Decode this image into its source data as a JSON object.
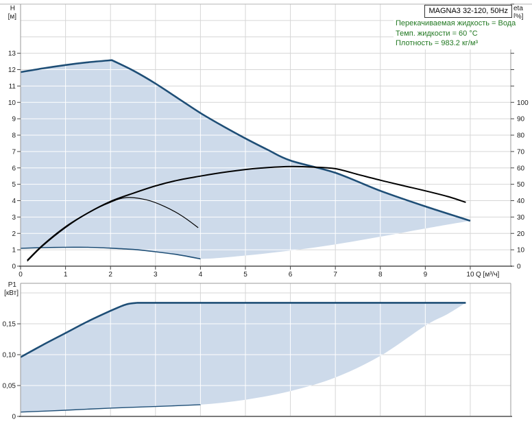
{
  "header": {
    "title": "MAGNA3 32-120, 50Hz"
  },
  "info_box": {
    "lines": [
      "Перекачиваемая жидкость = Вода",
      "Темп. жидкости = 60 °C",
      "Плотность = 983.2 кг/м³"
    ]
  },
  "colors": {
    "fill": "#cddaea",
    "curve_blue": "#1e4e76",
    "curve_black": "#000000",
    "grid": "#d6d6d6",
    "grid_in_area": "#ffffff",
    "plot_border": "#9a9a9a",
    "axis_line": "#7a7a7a",
    "tick_color": "#444444",
    "info_text": "#217821",
    "top_frame": "#b4b4b4"
  },
  "axes": {
    "h": {
      "name": "H",
      "unit": "[м]",
      "ticks": [
        0,
        1,
        2,
        3,
        4,
        5,
        6,
        7,
        8,
        9,
        10,
        11,
        12,
        13
      ],
      "grid": [
        1,
        2,
        3,
        4,
        5,
        6,
        7,
        8,
        9,
        10,
        11,
        12,
        13,
        14,
        15
      ],
      "max": 16
    },
    "eta": {
      "name": "eta",
      "unit": "[%]",
      "ticks": [
        0,
        10,
        20,
        30,
        40,
        50,
        60,
        70,
        80,
        90,
        100
      ],
      "tickmarks": [
        0,
        10,
        20,
        30,
        40,
        50,
        60,
        70,
        80,
        90,
        100,
        110,
        120,
        130,
        140,
        150,
        160
      ],
      "max": 160
    },
    "q": {
      "label": "Q [м³/ч]",
      "ticks": [
        0,
        1,
        2,
        3,
        4,
        5,
        6,
        7,
        8,
        9,
        10
      ],
      "max": 10.9
    },
    "p1": {
      "name": "P1",
      "unit": "[кВт]",
      "tick_labels": [
        "0",
        "0,05",
        "0,10",
        "0,15"
      ],
      "tick_values": [
        0,
        0.05,
        0.1,
        0.15
      ],
      "grid": [
        0.05,
        0.1,
        0.15,
        0.2
      ],
      "max": 0.2156
    }
  },
  "chart_data": [
    {
      "type": "area",
      "title": "MAGNA3 32-120, 50Hz",
      "xlabel": "Q [м³/ч]",
      "ylabel_left": "H [м]",
      "ylabel_right": "eta [%]",
      "x_range": [
        0,
        10.9
      ],
      "y_left_range": [
        0,
        16
      ],
      "y_right_range": [
        0,
        160
      ],
      "grid": true,
      "series": [
        {
          "name": "head-max-speed",
          "axis": "left",
          "width": 2.6,
          "color": "blue",
          "kink_at": 2.03,
          "points": [
            [
              0,
              11.85
            ],
            [
              0.5,
              12.08
            ],
            [
              1,
              12.28
            ],
            [
              1.5,
              12.45
            ],
            [
              2.03,
              12.58
            ],
            [
              2.5,
              11.95
            ],
            [
              3,
              11.15
            ],
            [
              3.5,
              10.25
            ],
            [
              4,
              9.35
            ],
            [
              4.5,
              8.55
            ],
            [
              5,
              7.8
            ],
            [
              5.5,
              7.1
            ],
            [
              6,
              6.45
            ],
            [
              7,
              5.7
            ],
            [
              8,
              4.6
            ],
            [
              9,
              3.65
            ],
            [
              10,
              2.77
            ]
          ]
        },
        {
          "name": "head-min-speed",
          "axis": "left",
          "width": 1.6,
          "color": "blue",
          "points": [
            [
              0,
              1.09
            ],
            [
              0.5,
              1.13
            ],
            [
              1,
              1.15
            ],
            [
              1.5,
              1.15
            ],
            [
              2,
              1.1
            ],
            [
              2.5,
              1.02
            ],
            [
              3,
              0.88
            ],
            [
              3.5,
              0.7
            ],
            [
              4,
              0.45
            ]
          ]
        },
        {
          "name": "operating-area-lower-boundary",
          "axis": "left",
          "width": 0,
          "color": "none",
          "points": [
            [
              4,
              0.45
            ],
            [
              5,
              0.65
            ],
            [
              6,
              0.95
            ],
            [
              7,
              1.33
            ],
            [
              8,
              1.8
            ],
            [
              9,
              2.3
            ],
            [
              10,
              2.77
            ]
          ]
        },
        {
          "name": "efficiency-max-speed",
          "axis": "right",
          "width": 2,
          "color": "black",
          "points": [
            [
              0.15,
              3.5
            ],
            [
              0.5,
              13
            ],
            [
              1,
              24
            ],
            [
              1.5,
              32.5
            ],
            [
              2,
              39.5
            ],
            [
              2.5,
              44.5
            ],
            [
              3,
              49
            ],
            [
              3.5,
              52.5
            ],
            [
              4,
              55
            ],
            [
              4.5,
              57.2
            ],
            [
              5,
              59
            ],
            [
              5.5,
              60.2
            ],
            [
              6,
              60.8
            ],
            [
              6.5,
              60.5
            ],
            [
              7,
              59.5
            ],
            [
              7.5,
              56
            ],
            [
              8,
              52.5
            ],
            [
              8.5,
              49.2
            ],
            [
              9,
              46
            ],
            [
              9.5,
              42.5
            ],
            [
              9.9,
              39
            ]
          ]
        },
        {
          "name": "efficiency-min-speed",
          "axis": "right",
          "width": 1.2,
          "color": "black",
          "points": [
            [
              0.15,
              3
            ],
            [
              0.5,
              12.5
            ],
            [
              1,
              23.5
            ],
            [
              1.5,
              32.5
            ],
            [
              2,
              39
            ],
            [
              2.36,
              41.9
            ],
            [
              2.8,
              40.5
            ],
            [
              3.2,
              36.5
            ],
            [
              3.6,
              30.5
            ],
            [
              3.95,
              23.5
            ]
          ]
        }
      ],
      "area_fill": {
        "upper": "head-max-speed",
        "lower": [
          "head-min-speed",
          "operating-area-lower-boundary"
        ]
      }
    },
    {
      "type": "area",
      "ylabel_left": "P1 [кВт]",
      "x_range": [
        0,
        10.9
      ],
      "y_left_range": [
        0,
        0.2156
      ],
      "grid": true,
      "series": [
        {
          "name": "power-max-speed",
          "axis": "left",
          "width": 2.6,
          "color": "blue",
          "kink_at": 2.6,
          "points": [
            [
              0,
              0.096
            ],
            [
              0.5,
              0.116
            ],
            [
              1,
              0.135
            ],
            [
              1.5,
              0.154
            ],
            [
              2,
              0.171
            ],
            [
              2.35,
              0.1815
            ],
            [
              2.6,
              0.184
            ],
            [
              9.9,
              0.184
            ]
          ]
        },
        {
          "name": "power-min-speed",
          "axis": "left",
          "width": 1.4,
          "color": "blue",
          "points": [
            [
              0,
              0.007
            ],
            [
              1,
              0.01
            ],
            [
              2,
              0.0135
            ],
            [
              3,
              0.016
            ],
            [
              4,
              0.019
            ]
          ]
        },
        {
          "name": "power-area-right-boundary",
          "axis": "left",
          "width": 0,
          "color": "none",
          "points": [
            [
              4,
              0.019
            ],
            [
              5,
              0.027
            ],
            [
              6,
              0.041
            ],
            [
              7,
              0.063
            ],
            [
              8,
              0.098
            ],
            [
              9,
              0.147
            ],
            [
              9.5,
              0.166
            ],
            [
              9.9,
              0.184
            ]
          ]
        }
      ],
      "area_fill": {
        "upper": "power-max-speed",
        "lower": [
          "power-min-speed",
          "power-area-right-boundary"
        ]
      }
    }
  ]
}
